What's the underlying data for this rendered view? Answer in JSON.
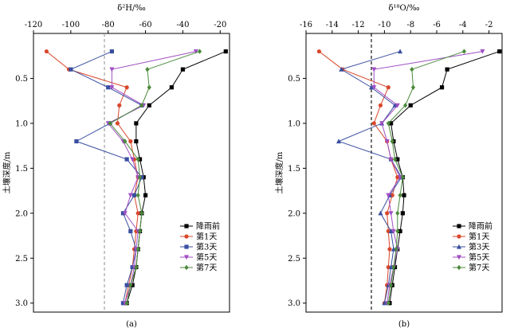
{
  "chart_data": [
    {
      "panel_label": "(a)",
      "type": "line",
      "title": "",
      "xlabel": "δ²H/‰",
      "ylabel": "土壤深度/m",
      "x_axis_position": "top",
      "y_axis_inverted": true,
      "xlim": [
        -120,
        -15
      ],
      "ylim": [
        0,
        3.1
      ],
      "xticks": [
        -120,
        -100,
        -80,
        -60,
        -40,
        -20
      ],
      "yticks": [
        0.5,
        1.0,
        1.5,
        2.0,
        2.5,
        3.0
      ],
      "ytick_labels": [
        "0.5",
        "1.0",
        "1.5",
        "2.0",
        "2.5",
        "3.0"
      ],
      "reference_line": {
        "x": -82,
        "style": "dashed",
        "color": "#999999"
      },
      "grid": false,
      "legend_position": "bottom-right",
      "depths": [
        0.2,
        0.4,
        0.6,
        0.8,
        1.0,
        1.2,
        1.4,
        1.6,
        1.8,
        2.0,
        2.2,
        2.4,
        2.6,
        2.8,
        3.0
      ],
      "series": [
        {
          "name": "降雨前",
          "color": "#000000",
          "marker": "square",
          "values": [
            -17,
            -40,
            -46,
            -58,
            -65,
            -65,
            -63,
            -61,
            -60,
            -62,
            -63,
            -64,
            -65,
            -67,
            -70
          ]
        },
        {
          "name": "第1天",
          "color": "#d9472b",
          "marker": "circle",
          "values": [
            -113,
            -101,
            -70,
            -74,
            -75,
            -68,
            -66,
            -64,
            -66,
            -64,
            -65,
            -66,
            -67,
            -69,
            -71
          ]
        },
        {
          "name": "第3天",
          "color": "#3a4fa0",
          "marker": "square",
          "values": [
            -78,
            -100,
            -80,
            -62,
            -79,
            -97,
            -70,
            -62,
            -66,
            -72,
            -68,
            -65,
            -67,
            -70,
            -72
          ]
        },
        {
          "name": "第5天",
          "color": "#a04fc4",
          "marker": "triangle-down",
          "values": [
            -33,
            -78,
            -78,
            -61,
            -80,
            -72,
            -67,
            -64,
            -68,
            -71,
            -64,
            -65,
            -66,
            -68,
            -71
          ]
        },
        {
          "name": "第7天",
          "color": "#4a8a3a",
          "marker": "diamond",
          "values": [
            -31,
            -59,
            -58,
            -62,
            -79,
            -71,
            -64,
            -63,
            -64,
            -62,
            -63,
            -64,
            -65,
            -68,
            -70
          ]
        }
      ]
    },
    {
      "panel_label": "(b)",
      "type": "line",
      "title": "",
      "xlabel": "δ¹⁸O/‰",
      "ylabel": "土壤深度/m",
      "x_axis_position": "top",
      "y_axis_inverted": true,
      "xlim": [
        -16,
        -1
      ],
      "ylim": [
        0,
        3.1
      ],
      "xticks": [
        -16,
        -14,
        -12,
        -10,
        -8,
        -6,
        -4,
        -2
      ],
      "yticks": [
        0.5,
        1.0,
        1.5,
        2.0,
        2.5,
        3.0
      ],
      "ytick_labels": [
        "0.5",
        "1.0",
        "1.5",
        "2.0",
        "2.5",
        "3.0"
      ],
      "reference_line": {
        "x": -11,
        "style": "dashed",
        "color": "#000000"
      },
      "grid": false,
      "legend_position": "bottom-right",
      "depths": [
        0.2,
        0.4,
        0.6,
        0.8,
        1.0,
        1.2,
        1.4,
        1.6,
        1.8,
        2.0,
        2.2,
        2.4,
        2.6,
        2.8,
        3.0
      ],
      "series": [
        {
          "name": "降雨前",
          "color": "#000000",
          "marker": "square",
          "values": [
            -1.2,
            -5.2,
            -5.6,
            -8.0,
            -9.5,
            -9.3,
            -9.0,
            -8.6,
            -8.5,
            -8.6,
            -8.8,
            -9.0,
            -9.2,
            -9.4,
            -9.6
          ]
        },
        {
          "name": "第1天",
          "color": "#d9472b",
          "marker": "circle",
          "values": [
            -15.0,
            -13.2,
            -9.7,
            -10.3,
            -10.8,
            -9.8,
            -9.5,
            -9.0,
            -9.4,
            -9.8,
            -9.7,
            -9.6,
            -9.7,
            -9.8,
            -10.0
          ]
        },
        {
          "name": "第3天",
          "color": "#3a4fa0",
          "marker": "triangle",
          "values": [
            -8.8,
            -13.3,
            -11.0,
            -9.2,
            -10.2,
            -13.5,
            -9.5,
            -8.7,
            -9.6,
            -10.3,
            -9.5,
            -9.3,
            -9.5,
            -9.7,
            -10.0
          ]
        },
        {
          "name": "第5天",
          "color": "#a04fc4",
          "marker": "triangle-down",
          "values": [
            -2.5,
            -10.8,
            -10.8,
            -9.0,
            -10.2,
            -9.8,
            -9.5,
            -8.8,
            -9.7,
            -9.5,
            -9.3,
            -9.0,
            -9.3,
            -9.6,
            -9.8
          ]
        },
        {
          "name": "第7天",
          "color": "#4a8a3a",
          "marker": "diamond",
          "values": [
            -3.9,
            -7.9,
            -7.8,
            -8.4,
            -9.7,
            -9.4,
            -9.2,
            -8.6,
            -8.8,
            -9.0,
            -9.0,
            -9.1,
            -9.3,
            -9.5,
            -9.7
          ]
        }
      ]
    }
  ]
}
